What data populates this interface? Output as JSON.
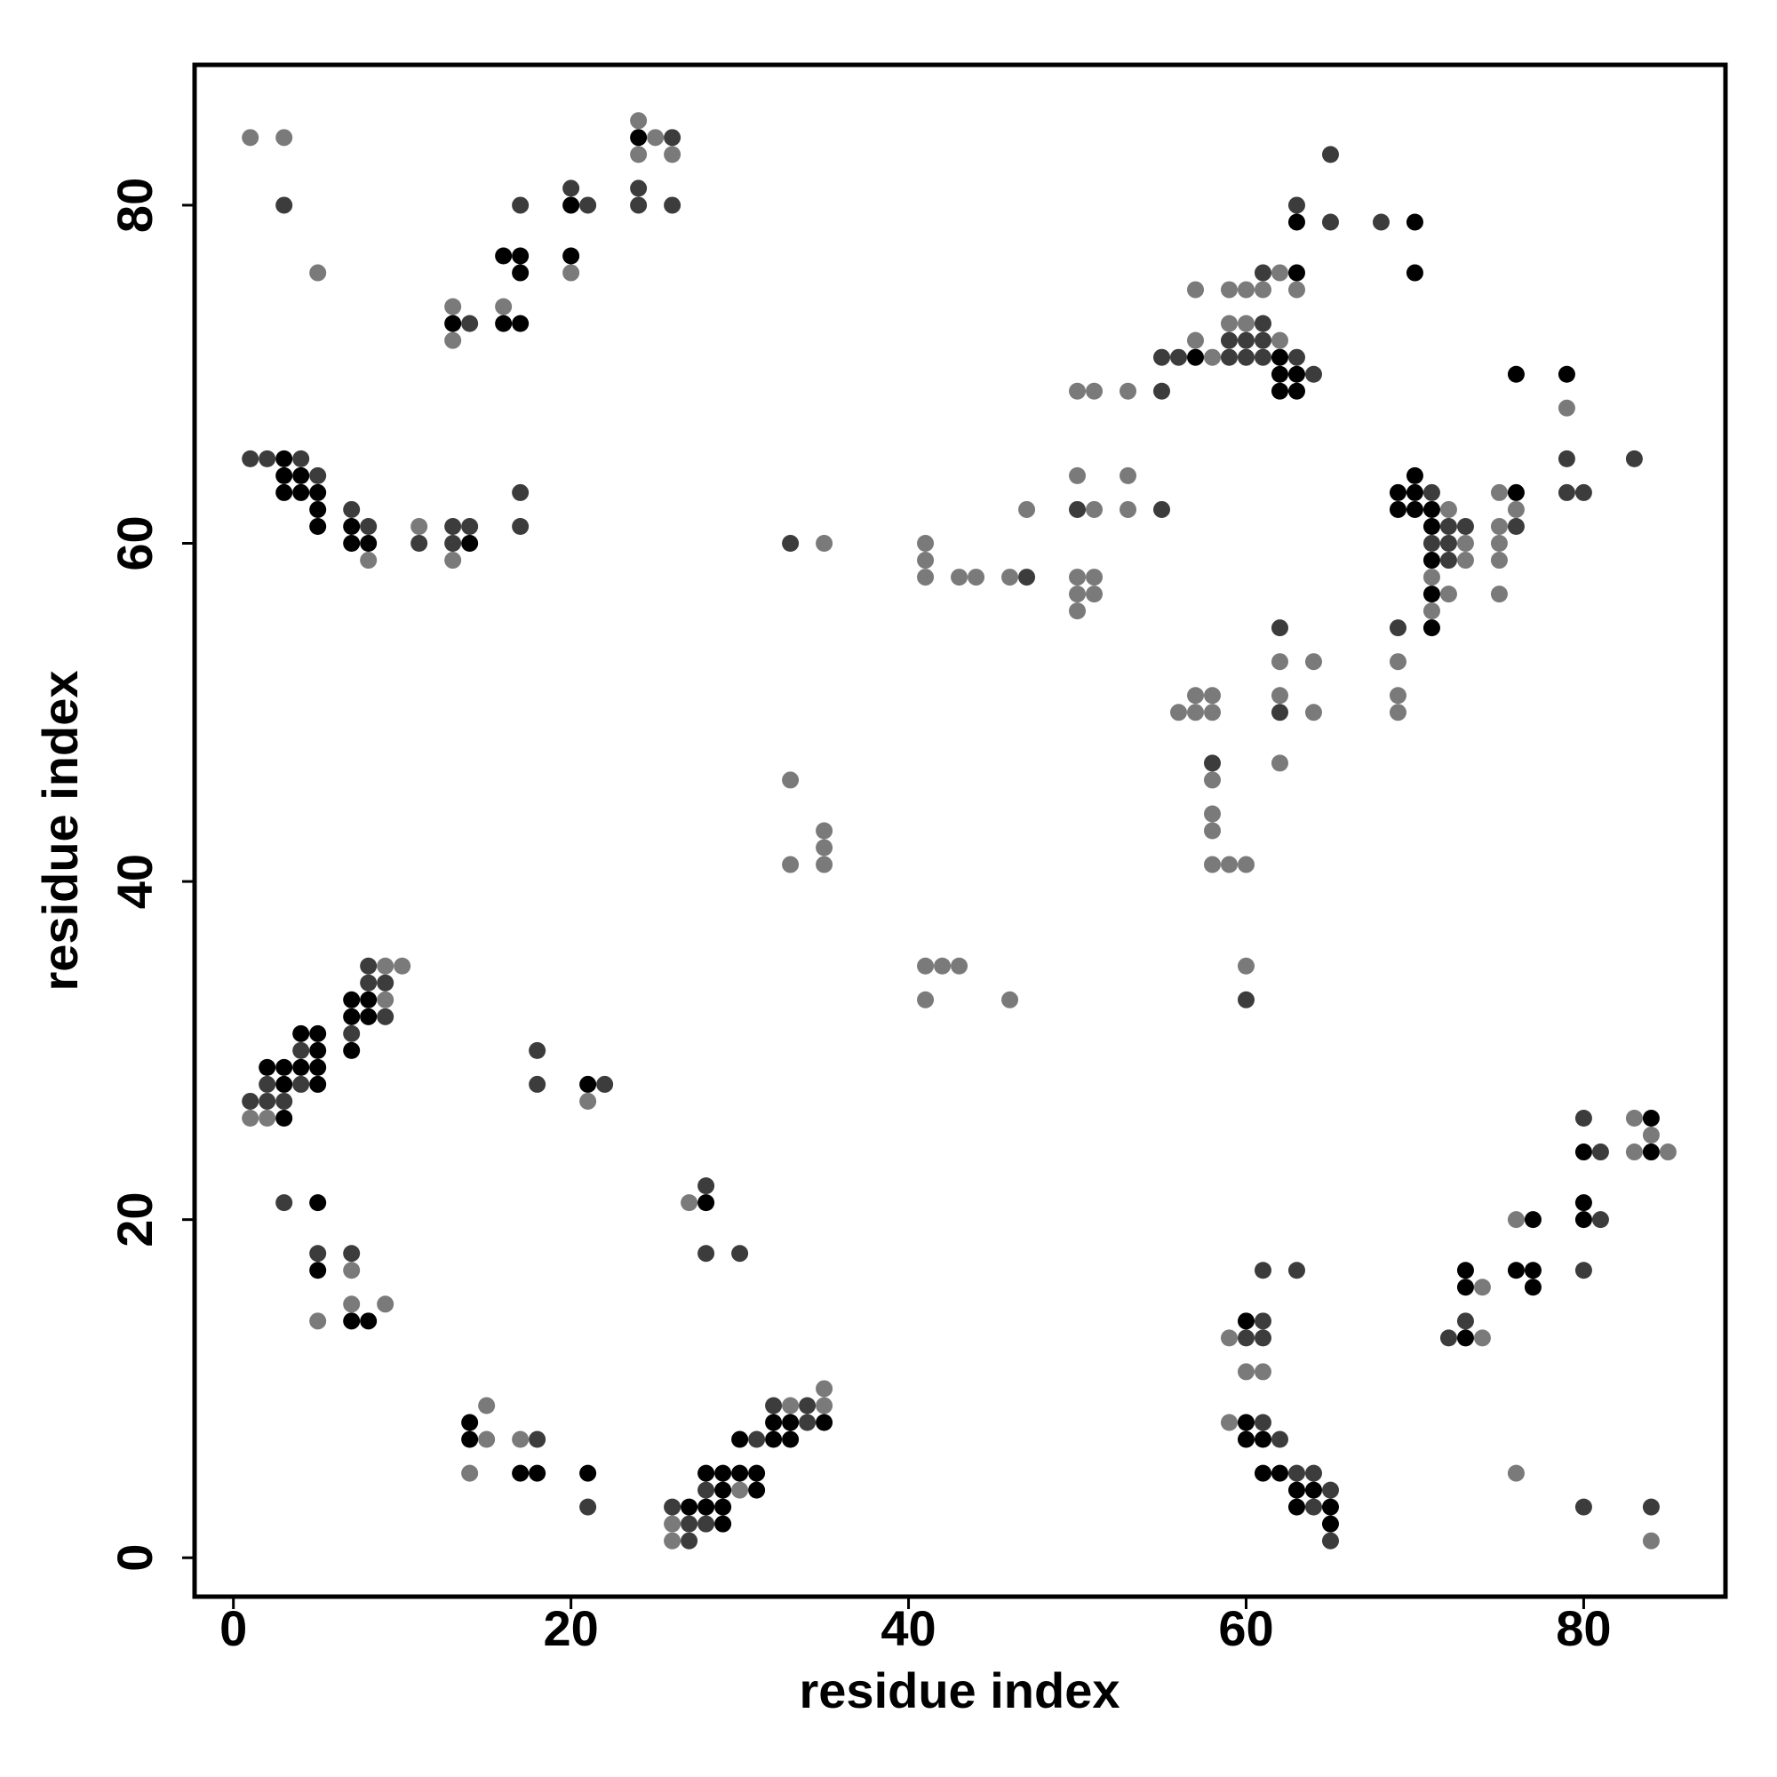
{
  "chart_data": {
    "type": "scatter",
    "xlabel": "residue index",
    "ylabel": "residue index",
    "xlim": [
      -2.3,
      88.4
    ],
    "ylim": [
      -2.3,
      88.3
    ],
    "xticks": [
      0,
      20,
      40,
      60,
      80
    ],
    "yticks": [
      0,
      20,
      40,
      60,
      80
    ],
    "series": [
      {
        "color": "#7a7a7a",
        "x": [
          1,
          3,
          5,
          13,
          13,
          16,
          20,
          24,
          25,
          24,
          26,
          8,
          11,
          13,
          35,
          41,
          41,
          41,
          43,
          44,
          46,
          47,
          50,
          51,
          53,
          50,
          53,
          51,
          53,
          50,
          51,
          50,
          51,
          50,
          57,
          57,
          58,
          59,
          59,
          60,
          61,
          60,
          62,
          62,
          63,
          79,
          72,
          73,
          73,
          71,
          72,
          71,
          69,
          69,
          69,
          75,
          75,
          76,
          75,
          75,
          75,
          62,
          64,
          62,
          64,
          62,
          56,
          57,
          58,
          57,
          58,
          58,
          58,
          58,
          58,
          59,
          60,
          60,
          33,
          33,
          35,
          35,
          35,
          41,
          42,
          43,
          41,
          46,
          1,
          2,
          9,
          9,
          10,
          21,
          5,
          7,
          7,
          9,
          15,
          15,
          14,
          17,
          27,
          26,
          26,
          30,
          33,
          35,
          35,
          59,
          60,
          61,
          59,
          74,
          74,
          76,
          76,
          83,
          84,
          83,
          85,
          84
        ],
        "values": [
          84,
          84,
          76,
          74,
          72,
          74,
          76,
          85,
          84,
          83,
          83,
          59,
          61,
          59,
          60,
          60,
          59,
          58,
          58,
          58,
          58,
          62,
          69,
          69,
          69,
          64,
          64,
          62,
          62,
          58,
          58,
          57,
          57,
          56,
          72,
          75,
          71,
          73,
          75,
          75,
          75,
          73,
          76,
          72,
          75,
          68,
          62,
          60,
          59,
          58,
          57,
          56,
          53,
          51,
          50,
          63,
          61,
          62,
          60,
          59,
          57,
          53,
          53,
          51,
          50,
          47,
          50,
          50,
          50,
          51,
          51,
          46,
          44,
          43,
          41,
          41,
          41,
          35,
          46,
          41,
          43,
          42,
          41,
          35,
          35,
          35,
          33,
          33,
          26,
          26,
          35,
          33,
          35,
          27,
          14,
          17,
          15,
          15,
          9,
          7,
          5,
          7,
          21,
          2,
          1,
          4,
          9,
          9,
          10,
          13,
          11,
          11,
          8,
          16,
          13,
          20,
          5,
          26,
          25,
          24,
          24,
          1
        ]
      },
      {
        "color": "#3c3c3c",
        "x": [
          3,
          14,
          17,
          20,
          21,
          26,
          24,
          24,
          26,
          1,
          2,
          4,
          5,
          7,
          8,
          11,
          13,
          14,
          13,
          17,
          17,
          33,
          47,
          55,
          50,
          55,
          55,
          56,
          59,
          59,
          60,
          60,
          61,
          61,
          61,
          61,
          63,
          64,
          63,
          65,
          65,
          68,
          79,
          79,
          80,
          83,
          71,
          72,
          73,
          71,
          72,
          72,
          69,
          76,
          62,
          62,
          58,
          60,
          1,
          2,
          2,
          3,
          4,
          4,
          7,
          8,
          8,
          9,
          9,
          18,
          18,
          22,
          3,
          5,
          7,
          18,
          21,
          28,
          28,
          30,
          26,
          27,
          27,
          28,
          28,
          31,
          32,
          34,
          34,
          61,
          63,
          61,
          60,
          61,
          61,
          62,
          63,
          64,
          65,
          64,
          65,
          72,
          73,
          80,
          81,
          81,
          80,
          80,
          84
        ],
        "values": [
          80,
          73,
          80,
          81,
          80,
          84,
          81,
          80,
          80,
          65,
          65,
          65,
          64,
          62,
          61,
          60,
          61,
          61,
          60,
          63,
          61,
          60,
          58,
          69,
          62,
          62,
          71,
          71,
          71,
          72,
          71,
          72,
          71,
          72,
          73,
          76,
          71,
          70,
          80,
          83,
          79,
          79,
          65,
          63,
          63,
          65,
          63,
          61,
          61,
          60,
          60,
          59,
          55,
          61,
          55,
          50,
          47,
          33,
          27,
          28,
          27,
          27,
          30,
          28,
          31,
          35,
          34,
          34,
          32,
          30,
          28,
          28,
          21,
          18,
          18,
          7,
          3,
          22,
          18,
          18,
          3,
          2,
          1,
          4,
          2,
          7,
          9,
          9,
          8,
          17,
          17,
          14,
          13,
          13,
          8,
          7,
          5,
          5,
          4,
          3,
          1,
          13,
          14,
          26,
          24,
          20,
          17,
          3,
          3
        ]
      },
      {
        "color": "#000000",
        "x": [
          13,
          16,
          17,
          17,
          16,
          17,
          20,
          20,
          24,
          3,
          3,
          4,
          3,
          4,
          5,
          5,
          5,
          7,
          7,
          8,
          14,
          57,
          62,
          62,
          62,
          63,
          63,
          63,
          63,
          70,
          70,
          76,
          79,
          70,
          69,
          70,
          69,
          70,
          71,
          71,
          71,
          71,
          71,
          76,
          2,
          3,
          3,
          3,
          4,
          4,
          5,
          5,
          5,
          5,
          7,
          7,
          7,
          8,
          8,
          21,
          5,
          5,
          7,
          8,
          14,
          14,
          17,
          18,
          21,
          28,
          27,
          28,
          29,
          30,
          31,
          29,
          31,
          28,
          29,
          29,
          30,
          32,
          33,
          35,
          32,
          33,
          60,
          60,
          60,
          61,
          61,
          62,
          63,
          64,
          63,
          65,
          65,
          73,
          73,
          73,
          77,
          76,
          77,
          77,
          80,
          80,
          80,
          84,
          84
        ],
        "values": [
          73,
          77,
          77,
          76,
          73,
          73,
          80,
          77,
          84,
          65,
          64,
          64,
          63,
          63,
          63,
          62,
          61,
          61,
          60,
          60,
          60,
          71,
          71,
          70,
          69,
          70,
          69,
          76,
          79,
          79,
          76,
          70,
          70,
          64,
          63,
          63,
          62,
          62,
          62,
          61,
          59,
          57,
          55,
          63,
          29,
          29,
          28,
          26,
          31,
          29,
          31,
          30,
          29,
          28,
          33,
          32,
          30,
          33,
          32,
          28,
          21,
          17,
          14,
          14,
          8,
          7,
          5,
          5,
          5,
          21,
          3,
          5,
          5,
          5,
          5,
          4,
          4,
          3,
          3,
          2,
          7,
          8,
          8,
          8,
          7,
          7,
          14,
          8,
          7,
          7,
          5,
          5,
          4,
          4,
          3,
          3,
          2,
          13,
          17,
          16,
          20,
          17,
          17,
          16,
          24,
          21,
          20,
          26,
          24
        ]
      }
    ]
  }
}
